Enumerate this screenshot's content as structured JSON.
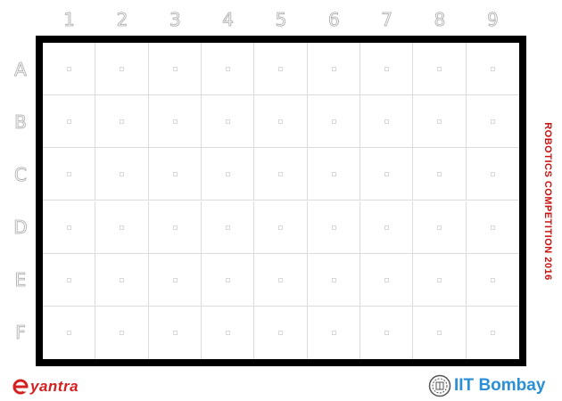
{
  "grid": {
    "columns": [
      "1",
      "2",
      "3",
      "4",
      "5",
      "6",
      "7",
      "8",
      "9"
    ],
    "rows": [
      "A",
      "B",
      "C",
      "D",
      "E",
      "F"
    ]
  },
  "side_title": "ROBOTICS COMPETITION 2016",
  "logos": {
    "eyantra": "yantra",
    "iit": "IIT Bombay"
  },
  "colors": {
    "arena_border": "#000000",
    "grid_line": "#dcdcdc",
    "label_outline": "#aaaaaa",
    "title_red": "#cc1111",
    "eyantra_red": "#d42020",
    "iit_blue": "#2a8fd6"
  }
}
